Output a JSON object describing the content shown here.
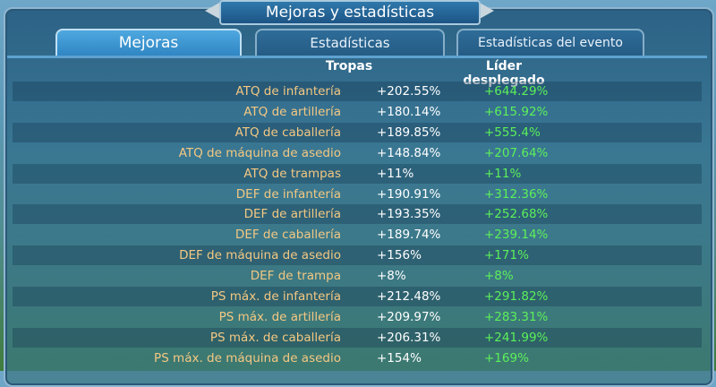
{
  "header": {
    "title": "Mejoras y estadísticas"
  },
  "tabs": [
    "Mejoras",
    "Estadísticas",
    "Estadísticas del evento"
  ],
  "table": {
    "columns": [
      "Tropas",
      "Líder desplegado"
    ],
    "rows": [
      [
        "ATQ de infantería",
        "+202.55%",
        "+644.29%"
      ],
      [
        "ATQ de artillería",
        "+180.14%",
        "+615.92%"
      ],
      [
        "ATQ de caballería",
        "+189.85%",
        "+555.4%"
      ],
      [
        "ATQ de máquina de asedio",
        "+148.84%",
        "+207.64%"
      ],
      [
        "ATQ de trampas",
        "+11%",
        "+11%"
      ],
      [
        "DEF de infantería",
        "+190.91%",
        "+312.36%"
      ],
      [
        "DEF de artillería",
        "+193.35%",
        "+252.68%"
      ],
      [
        "DEF de caballería",
        "+189.74%",
        "+239.14%"
      ],
      [
        "DEF de máquina de asedio",
        "+156%",
        "+171%"
      ],
      [
        "DEF de trampa",
        "+8%",
        "+8%"
      ],
      [
        "PS máx. de infantería",
        "+212.48%",
        "+291.82%"
      ],
      [
        "PS máx. de artillería",
        "+209.97%",
        "+283.31%"
      ],
      [
        "PS máx. de caballería",
        "+206.31%",
        "+241.99%"
      ],
      [
        "PS máx. de máquina de asedio",
        "+154%",
        "+169%"
      ]
    ]
  }
}
